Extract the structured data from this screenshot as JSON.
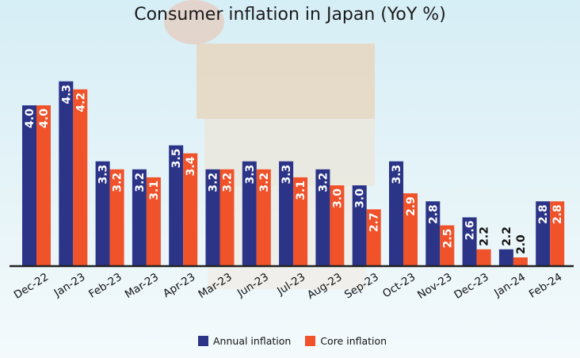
{
  "chart_data": {
    "type": "bar",
    "title": "Consumer inflation in Japan (YoY %)",
    "xlabel": "",
    "ylabel": "",
    "ylim": [
      2.0,
      4.4
    ],
    "grid": false,
    "legend_position": "bottom",
    "categories": [
      "Dec-22",
      "Jan-23",
      "Feb-23",
      "Mar-23",
      "Apr-23",
      "Mar-23",
      "Jun-23",
      "Jul-23",
      "Aug-23",
      "Sep-23",
      "Oct-23",
      "Nov-23",
      "Dec-23",
      "Jan-24",
      "Feb-24"
    ],
    "series": [
      {
        "name": "Annual inflation",
        "color": "#2b3487",
        "values": [
          4.0,
          4.3,
          3.3,
          3.2,
          3.5,
          3.2,
          3.3,
          3.3,
          3.2,
          3.0,
          3.3,
          2.8,
          2.6,
          2.2,
          2.8
        ]
      },
      {
        "name": "Core inflation",
        "color": "#f0522a",
        "values": [
          4.0,
          4.2,
          3.2,
          3.1,
          3.4,
          3.2,
          3.2,
          3.1,
          3.0,
          2.7,
          2.9,
          2.5,
          2.2,
          2.0,
          2.8
        ]
      }
    ]
  }
}
